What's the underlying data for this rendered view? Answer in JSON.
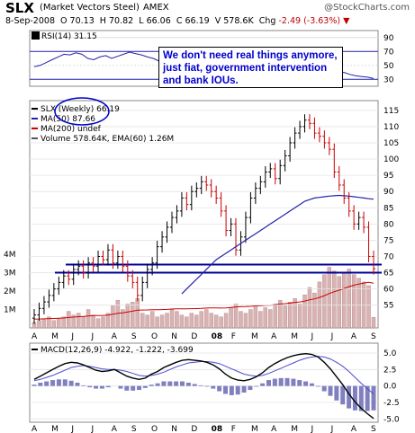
{
  "header": {
    "symbol": "SLX",
    "name": "(Market Vectors Steel)",
    "exchange": "AMEX",
    "copyright": "@StockCharts.com",
    "date": "8-Sep-2008",
    "open_label": "O",
    "open": "70.13",
    "high_label": "H",
    "high": "70.82",
    "low_label": "L",
    "low": "66.06",
    "close_label": "C",
    "close": "66.19",
    "volume_label": "V",
    "volume": "578.6K",
    "change_label": "Chg",
    "change": "-2.49 (-3.63%)",
    "change_arrow": "▼"
  },
  "annotation": "We don't need real things anymore, just fiat, government intervention and bank IOUs.",
  "colors": {
    "up": "#000000",
    "down": "#cc0000",
    "ma50": "#2222aa",
    "ma200": "#cc0000",
    "support": "#000099",
    "volume": "#d9b3b3",
    "macd_hist": "#8080c0",
    "signal": "#4a4ad0"
  },
  "chart_data": [
    {
      "panel": "rsi",
      "type": "line",
      "legend": "RSI(14) 31.15",
      "value": 31.15,
      "ylim": [
        20,
        100
      ],
      "ticks": [
        30,
        50,
        70,
        90
      ],
      "series": [
        {
          "name": "RSI(14)",
          "values": [
            48,
            50,
            54,
            58,
            62,
            66,
            65,
            68,
            66,
            60,
            58,
            62,
            64,
            60,
            63,
            66,
            69,
            67,
            65,
            62,
            60,
            56,
            54,
            58,
            61,
            63,
            64,
            62,
            58,
            54,
            52,
            55,
            58,
            60,
            62,
            60,
            57,
            55,
            52,
            50,
            48,
            50,
            54,
            57,
            60,
            58,
            55,
            52,
            50,
            46,
            42,
            38,
            40,
            37,
            35,
            34,
            33,
            31.15
          ]
        }
      ]
    },
    {
      "panel": "price",
      "type": "ohlc",
      "legend": [
        "SLX (Weekly) 66.19",
        "MA(50) 87.66",
        "MA(200) undef",
        "Volume 578.64K, EMA(60) 1.26M"
      ],
      "ylim": [
        48,
        118
      ],
      "ticks": [
        55,
        60,
        65,
        70,
        75,
        80,
        85,
        90,
        95,
        100,
        105,
        110,
        115
      ],
      "volume_ticks": [
        "1M",
        "2M",
        "3M",
        "4M"
      ],
      "months": [
        "A",
        "M",
        "J",
        "J",
        "A",
        "S",
        "O",
        "N",
        "D",
        "08",
        "F",
        "M",
        "A",
        "M",
        "J",
        "J",
        "A",
        "S"
      ],
      "support_levels": [
        65,
        67.5
      ],
      "close": [
        52,
        54,
        56,
        58,
        60,
        62,
        64,
        63,
        66,
        67,
        65,
        68,
        67,
        70,
        69,
        72,
        68,
        70,
        67,
        64,
        62,
        58,
        62,
        66,
        68,
        73,
        76,
        79,
        82,
        84,
        88,
        86,
        90,
        91,
        93,
        92,
        90,
        88,
        84,
        78,
        80,
        72,
        76,
        82,
        88,
        91,
        93,
        96,
        97,
        94,
        98,
        101,
        105,
        108,
        110,
        112,
        111,
        108,
        107,
        105,
        103,
        96,
        92,
        88,
        84,
        80,
        82,
        79,
        70,
        66.19
      ],
      "ma50": [
        null,
        null,
        null,
        null,
        null,
        null,
        null,
        null,
        null,
        null,
        null,
        null,
        null,
        null,
        null,
        null,
        null,
        null,
        null,
        null,
        null,
        null,
        null,
        null,
        null,
        null,
        null,
        null,
        null,
        null,
        58.5,
        60,
        61.5,
        63,
        64.5,
        66,
        67.5,
        69,
        70,
        71,
        72,
        73,
        74,
        75,
        76,
        77,
        78,
        79,
        80,
        81,
        82,
        83,
        84,
        85,
        86,
        87,
        87.5,
        88,
        88.2,
        88.4,
        88.6,
        88.7,
        88.8,
        88.7,
        88.6,
        88.4,
        88.2,
        88,
        87.8,
        87.66
      ],
      "volume": [
        0.3,
        0.4,
        0.5,
        0.6,
        0.4,
        0.5,
        0.6,
        0.9,
        0.7,
        0.8,
        0.6,
        1.0,
        0.7,
        0.5,
        0.6,
        0.8,
        1.2,
        1.5,
        1.0,
        1.3,
        1.4,
        1.6,
        0.8,
        0.7,
        0.9,
        0.6,
        0.7,
        0.8,
        1.0,
        0.9,
        0.7,
        0.6,
        0.8,
        0.7,
        0.9,
        1.0,
        0.8,
        0.7,
        0.6,
        0.8,
        1.1,
        1.3,
        0.9,
        0.8,
        1.0,
        1.2,
        0.9,
        1.1,
        1.0,
        1.3,
        1.5,
        1.2,
        1.4,
        1.6,
        1.3,
        1.8,
        2.2,
        1.9,
        2.5,
        2.9,
        3.3,
        3.1,
        2.8,
        3.0,
        3.2,
        2.9,
        2.7,
        2.5,
        2.3,
        0.58
      ]
    },
    {
      "panel": "macd",
      "type": "line",
      "legend": "MACD(12,26,9) -4.922, -1.222, -3.699",
      "values": {
        "macd": -4.922,
        "signal": -1.222,
        "histogram": -3.699
      },
      "ylim": [
        -5.5,
        6.5
      ],
      "ticks": [
        -5.0,
        -2.5,
        0.0,
        2.5,
        5.0
      ],
      "months": [
        "A",
        "M",
        "J",
        "J",
        "A",
        "S",
        "O",
        "N",
        "D",
        "08",
        "F",
        "M",
        "A",
        "M",
        "J",
        "J",
        "A",
        "S"
      ],
      "series": [
        {
          "name": "MACD",
          "values": [
            1.0,
            1.5,
            2.0,
            2.5,
            3.0,
            3.4,
            3.6,
            3.5,
            3.2,
            2.8,
            2.4,
            2.2,
            2.3,
            2.5,
            2.0,
            1.5,
            1.2,
            1.0,
            1.2,
            1.8,
            2.2,
            2.8,
            3.2,
            3.6,
            3.9,
            4.0,
            3.9,
            3.8,
            3.6,
            3.2,
            2.6,
            1.8,
            1.2,
            0.9,
            0.8,
            1.0,
            1.4,
            2.0,
            2.8,
            3.4,
            3.9,
            4.3,
            4.6,
            4.8,
            4.9,
            4.8,
            4.4,
            3.6,
            2.6,
            1.4,
            0.2,
            -1.2,
            -2.4,
            -3.4,
            -4.2,
            -4.922
          ]
        },
        {
          "name": "Signal",
          "values": [
            0.8,
            1.0,
            1.3,
            1.6,
            2.0,
            2.4,
            2.8,
            3.0,
            3.1,
            3.0,
            2.8,
            2.6,
            2.5,
            2.5,
            2.4,
            2.2,
            1.9,
            1.6,
            1.5,
            1.6,
            1.8,
            2.1,
            2.5,
            2.9,
            3.2,
            3.5,
            3.6,
            3.7,
            3.7,
            3.6,
            3.4,
            3.0,
            2.6,
            2.2,
            1.8,
            1.6,
            1.5,
            1.6,
            1.9,
            2.3,
            2.7,
            3.1,
            3.5,
            3.9,
            4.2,
            4.4,
            4.5,
            4.4,
            4.1,
            3.6,
            3.0,
            2.2,
            1.3,
            0.4,
            -0.4,
            -1.222
          ]
        }
      ]
    }
  ]
}
